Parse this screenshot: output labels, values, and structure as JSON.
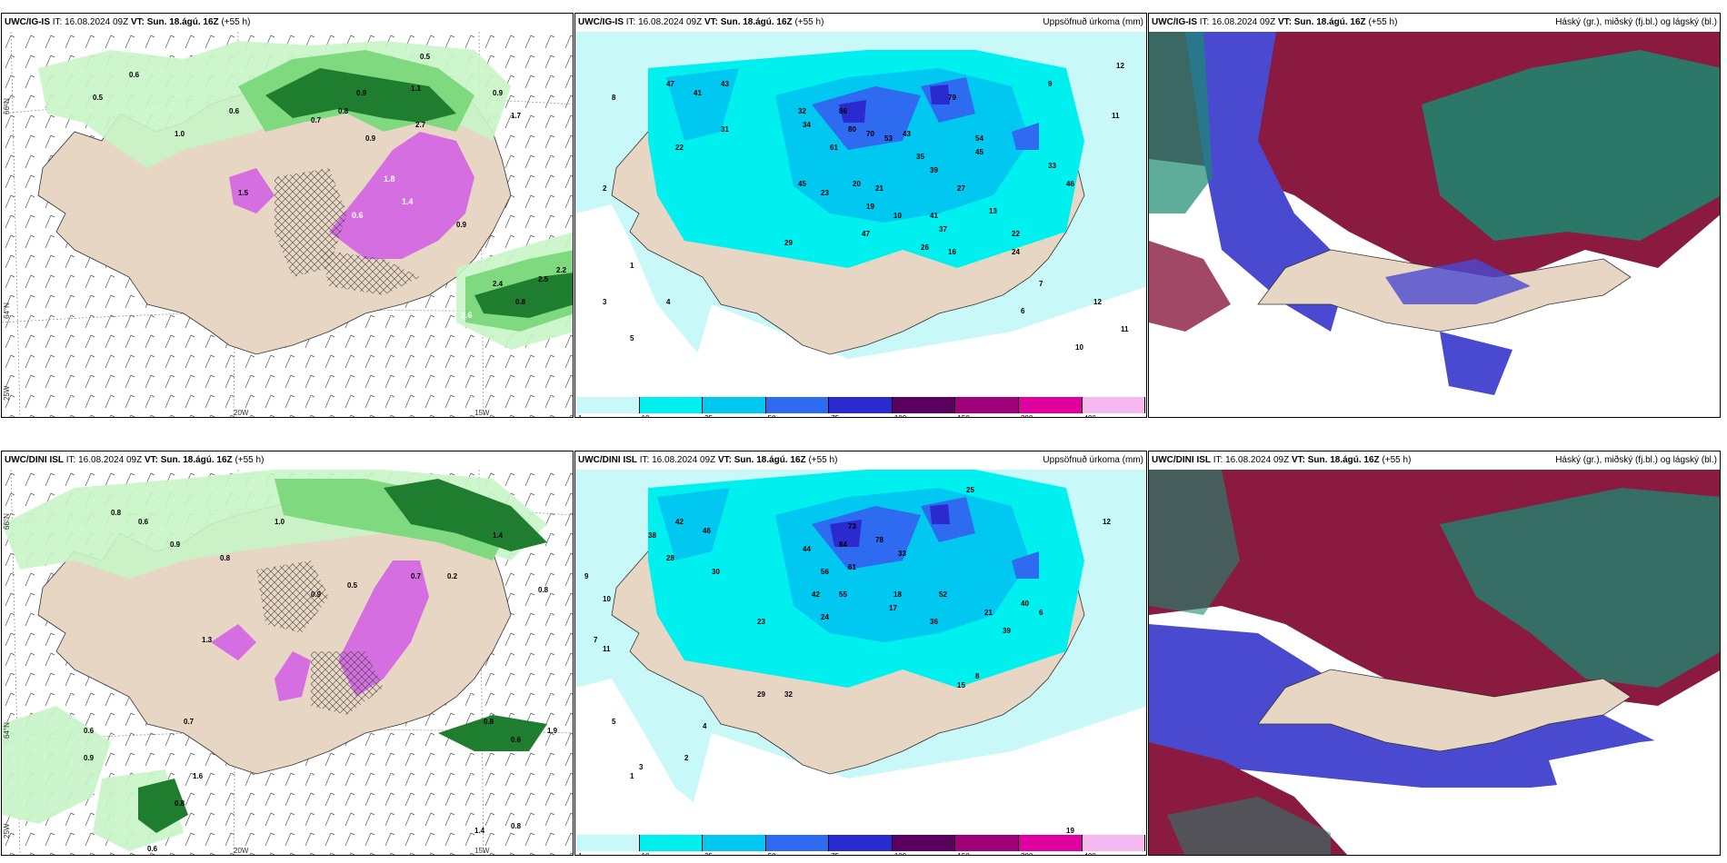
{
  "colors": {
    "land": "#e8d6c4",
    "sea": "#ffffff",
    "precip_light": "#c8f5c8",
    "precip_mid": "#7fd97f",
    "precip_dark": "#1e7d2e",
    "precip_heavy": "#0b4d18",
    "precip_purple": "#d56ee0",
    "accum_1": "#c8f8f8",
    "accum_10": "#00f0f0",
    "accum_25": "#00c8f0",
    "accum_50": "#2f6bf0",
    "accum_75": "#2a2ad0",
    "accum_100": "#5a0060",
    "accum_150": "#a0007a",
    "accum_200": "#e000a0",
    "accum_400": "#f5b8f0",
    "cloud_high": "#1a8a70",
    "cloud_mid": "#4a4ad0",
    "cloud_low": "#8a1a40"
  },
  "rows": [
    {
      "model": "UWC/IG-IS",
      "panels": [
        {
          "model": "UWC/IG-IS",
          "it_label": "IT:",
          "it_value": "16.08.2024 09Z",
          "vt_label": "VT:",
          "vt_value": "Sun. 18.ágú. 16Z",
          "lead": "(+55 h)",
          "right_title": ""
        },
        {
          "model": "UWC/IG-IS",
          "it_label": "IT:",
          "it_value": "16.08.2024 09Z",
          "vt_label": "VT:",
          "vt_value": "Sun. 18.ágú. 16Z",
          "lead": "(+55 h)",
          "right_title": "Uppsöfnuð úrkoma (mm)"
        },
        {
          "model": "UWC/IG-IS",
          "it_label": "IT:",
          "it_value": "16.08.2024 09Z",
          "vt_label": "VT:",
          "vt_value": "Sun. 18.ágú. 16Z",
          "lead": "(+55 h)",
          "right_title": "Háský (gr.), miðský (fj.bl.) og lágský (bl.)"
        }
      ]
    },
    {
      "model": "UWC/DINI ISL",
      "panels": [
        {
          "model": "UWC/DINI ISL",
          "it_label": "IT:",
          "it_value": "16.08.2024 09Z",
          "vt_label": "VT:",
          "vt_value": "Sun. 18.ágú. 16Z",
          "lead": "(+55 h)",
          "right_title": ""
        },
        {
          "model": "UWC/DINI ISL",
          "it_label": "IT:",
          "it_value": "16.08.2024 09Z",
          "vt_label": "VT:",
          "vt_value": "Sun. 18.ágú. 16Z",
          "lead": "(+55 h)",
          "right_title": "Uppsöfnuð úrkoma (mm)"
        },
        {
          "model": "UWC/DINI ISL",
          "it_label": "IT:",
          "it_value": "16.08.2024 09Z",
          "vt_label": "VT:",
          "vt_value": "Sun. 18.ágú. 16Z",
          "lead": "(+55 h)",
          "right_title": "Háský (gr.), miðský (fj.bl.) og lágský (bl.)"
        }
      ]
    }
  ],
  "axis_labels": {
    "lat_66": "66°N",
    "lat_64": "64°N",
    "lon_25": "25W",
    "lon_20": "20W",
    "lon_15": "15W"
  },
  "colorbar_ticks": [
    "1",
    "10",
    "25",
    "50",
    "75",
    "100",
    "150",
    "200",
    "400"
  ],
  "precip_values_top": [
    "0.5",
    "0.6",
    "1.0",
    "0.7",
    "0.8",
    "0.9",
    "1.5",
    "2.7",
    "1.1",
    "0.5",
    "0.8",
    "1.7",
    "1.8",
    "1.4",
    "0.6",
    "0.9",
    "2.4",
    "2.5",
    "0.8",
    "2.6",
    "2.1",
    "2.2",
    "1.1",
    "0.5"
  ],
  "precip_values_bottom": [
    "0.8",
    "0.6",
    "0.9",
    "1.4",
    "1.0",
    "0.8",
    "0.9",
    "0.2",
    "0.7",
    "1.3",
    "0.6",
    "0.9",
    "0.5",
    "1.6",
    "0.8",
    "0.6",
    "0.6",
    "0.8",
    "1.9",
    "0.8",
    "1.4",
    "0.8",
    "0.7"
  ],
  "accum_values_top": [
    "8",
    "41",
    "43",
    "47",
    "22",
    "31",
    "32",
    "34",
    "86",
    "80",
    "79",
    "70",
    "54",
    "35",
    "45",
    "61",
    "53",
    "43",
    "20",
    "21",
    "19",
    "39",
    "45",
    "27",
    "13",
    "23",
    "41",
    "10",
    "22",
    "37",
    "29",
    "47",
    "26",
    "24",
    "16",
    "12",
    "9",
    "11",
    "2",
    "1",
    "3",
    "5",
    "7",
    "4",
    "6",
    "12",
    "33",
    "46",
    "11",
    "10"
  ],
  "accum_values_bottom": [
    "38",
    "42",
    "46",
    "28",
    "44",
    "30",
    "56",
    "73",
    "78",
    "84",
    "61",
    "42",
    "55",
    "23",
    "24",
    "33",
    "36",
    "52",
    "21",
    "18",
    "17",
    "40",
    "39",
    "4",
    "5",
    "7",
    "10",
    "11",
    "9",
    "8",
    "3",
    "12",
    "19",
    "15",
    "25",
    "6",
    "29",
    "32",
    "1",
    "2"
  ]
}
